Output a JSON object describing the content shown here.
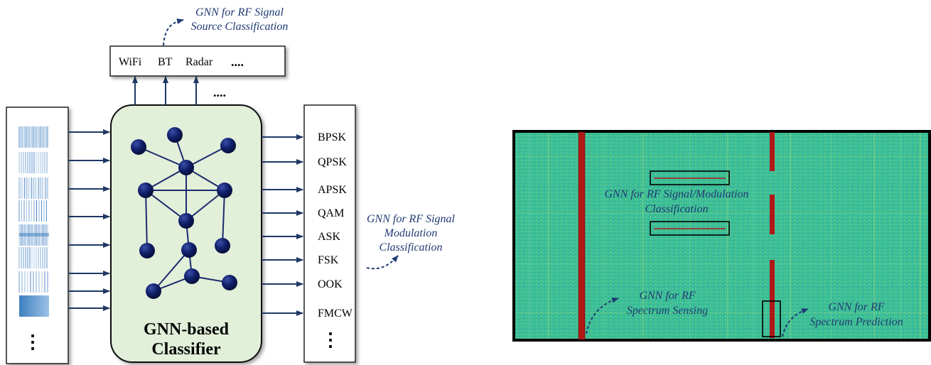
{
  "left_panel": {
    "classifier": {
      "title_line1": "GNN-based",
      "title_line2": "Classifier"
    },
    "source_outputs": [
      "WiFi",
      "BT",
      "Radar",
      "...."
    ],
    "source_more": "....",
    "modulation_outputs": [
      "BPSK",
      "QPSK",
      "APSK",
      "QAM",
      "ASK",
      "FSK",
      "OOK",
      "FMCW"
    ],
    "input_more": "⋮",
    "output_more": "⋮",
    "ann_source": {
      "line1": "GNN for RF Signal",
      "line2": "Source Classification"
    },
    "ann_modulation": {
      "line1": "GNN for RF Signal",
      "line2": "Modulation",
      "line3": "Classification"
    }
  },
  "right_panel": {
    "ann_sig_mod": {
      "line1": "GNN for RF Signal/Modulation",
      "line2": "Classification"
    },
    "ann_sensing": {
      "line1": "GNN for RF",
      "line2": "Spectrum Sensing"
    },
    "ann_prediction": {
      "line1": "GNN for RF",
      "line2": "Spectrum Prediction"
    }
  },
  "colors": {
    "node": "#0d1b5e",
    "edge": "#1a2a6c",
    "classifier_fill": "#e2efd9",
    "arrow": "#1f3864",
    "annotation": "#1f3a73",
    "spectrum": "#3cbf96",
    "signal_bar": "#b01818"
  }
}
